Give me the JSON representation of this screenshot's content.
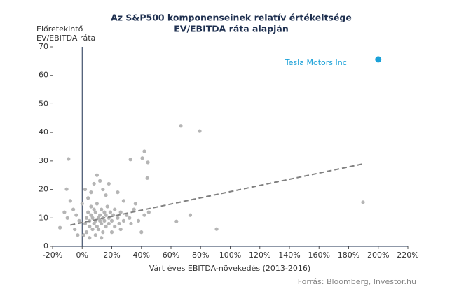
{
  "chart_data": {
    "type": "scatter",
    "title": "Az S&P500 komponenseinek  relatív értékeltsége",
    "subtitle": "EV/EBITDA ráta alapján",
    "ylabel": [
      "Előretekintő",
      "EV/EBITDA ráta"
    ],
    "xlabel": "Várt éves EBITDA-növekedés (2013-2016)",
    "source": "Forrás: Bloomberg, Investor.hu",
    "xlim": [
      -20,
      220
    ],
    "ylim": [
      0,
      70
    ],
    "xticks": [
      {
        "value": -20,
        "label": "-20%"
      },
      {
        "value": 0,
        "label": "0%"
      },
      {
        "value": 20,
        "label": "20%"
      },
      {
        "value": 40,
        "label": "40%"
      },
      {
        "value": 60,
        "label": "60%"
      },
      {
        "value": 80,
        "label": "80%"
      },
      {
        "value": 100,
        "label": "100%"
      },
      {
        "value": 120,
        "label": "120%"
      },
      {
        "value": 140,
        "label": "140%"
      },
      {
        "value": 160,
        "label": "160%"
      },
      {
        "value": 180,
        "label": "180%"
      },
      {
        "value": 200,
        "label": "200%"
      },
      {
        "value": 220,
        "label": "220%"
      }
    ],
    "yticks": [
      0,
      10,
      20,
      30,
      40,
      50,
      60,
      70
    ],
    "color": "#b5b5b5",
    "points": {
      "x": [
        2,
        3,
        4,
        5,
        5,
        6,
        6,
        7,
        7,
        8,
        8,
        9,
        9,
        10,
        10,
        11,
        11,
        12,
        12,
        13,
        13,
        14,
        14,
        15,
        15,
        16,
        16,
        17,
        18,
        18,
        19,
        20,
        21,
        22,
        22,
        24,
        25,
        26,
        28,
        30,
        32,
        35,
        38,
        40,
        42,
        45,
        1,
        3,
        4,
        6,
        8,
        10,
        12,
        14,
        16,
        18,
        24,
        28,
        -2,
        -4,
        -5,
        -6,
        0,
        2,
        5,
        9,
        13,
        20,
        26,
        33,
        36,
        -3,
        -10,
        -12,
        -8,
        66.6,
        79.4,
        -9.2,
        32.6,
        40.6,
        42,
        44.4,
        44,
        189.7,
        90.8,
        73,
        63.7,
        -10.5,
        -15
      ],
      "y": [
        8,
        10,
        12,
        7,
        9,
        11,
        14,
        6,
        10,
        8,
        13,
        9,
        12,
        7,
        15,
        10,
        6,
        11,
        9,
        13,
        8,
        10,
        5,
        12,
        9,
        11,
        7,
        14,
        10,
        8,
        12,
        9,
        11,
        7,
        13,
        10,
        8,
        12,
        9,
        11,
        10,
        13,
        9,
        5,
        11,
        12,
        4,
        5,
        17,
        19,
        22,
        25,
        23,
        20,
        18,
        22,
        19,
        16,
        9,
        11,
        6,
        13,
        15,
        20,
        3,
        4,
        3,
        5,
        6,
        8,
        15,
        4,
        10,
        12,
        16,
        42.3,
        40.5,
        30.7,
        30.5,
        31,
        33.4,
        29.5,
        24,
        15.5,
        6.1,
        11,
        8.8,
        20.1,
        6.6
      ]
    },
    "highlight": {
      "label": "Tesla Motors Inc",
      "x": 200,
      "y": 65.6,
      "color": "#1ba1d8"
    },
    "trendline": {
      "x": [
        -8,
        190
      ],
      "y": [
        7.5,
        29
      ],
      "color": "#808080"
    }
  }
}
